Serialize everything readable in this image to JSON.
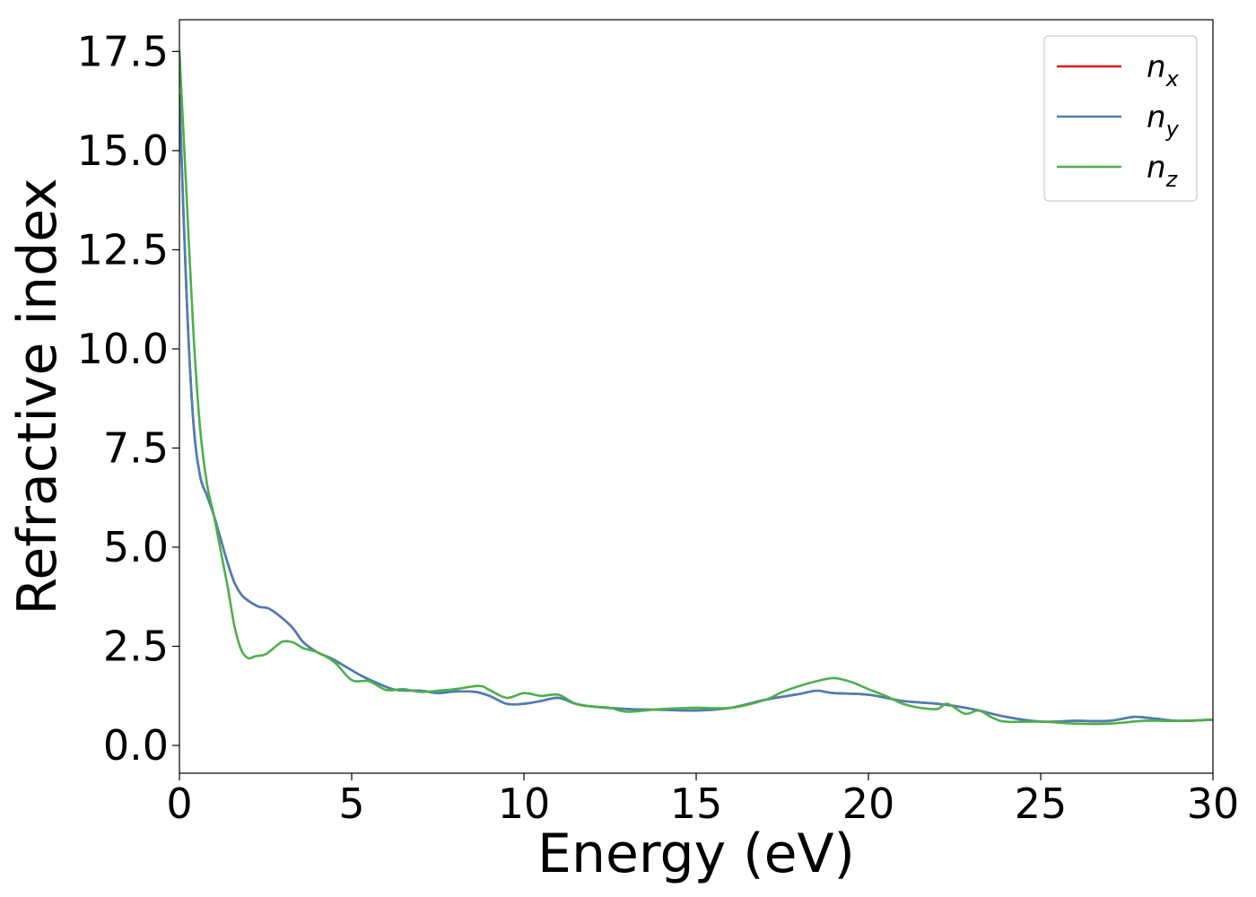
{
  "chart_data": {
    "type": "line",
    "title": "",
    "xlabel": "Energy (eV)",
    "ylabel": "Refractive index",
    "xlim": [
      0,
      30
    ],
    "ylim": [
      -0.7,
      18.3
    ],
    "xticks": [
      0,
      5,
      10,
      15,
      20,
      25,
      30
    ],
    "xtick_labels": [
      "0",
      "5",
      "10",
      "15",
      "20",
      "25",
      "30"
    ],
    "yticks": [
      0,
      2.5,
      5,
      7.5,
      10,
      12.5,
      15,
      17.5
    ],
    "ytick_labels": [
      "0.0",
      "2.5",
      "5.0",
      "7.5",
      "10.0",
      "12.5",
      "15.0",
      "17.5"
    ],
    "grid": false,
    "legend_position": "top-right",
    "series": [
      {
        "name": "n_x",
        "label_main": "n",
        "label_sub": "x",
        "color": "#e41a1c",
        "x": [
          0,
          0.2,
          0.4,
          0.6,
          0.8,
          1.0,
          1.2,
          1.4,
          1.6,
          1.8,
          2.0,
          2.3,
          2.6,
          3.0,
          3.3,
          3.6,
          4.0,
          4.4,
          4.8,
          5.3,
          5.8,
          6.3,
          7.0,
          7.5,
          8.0,
          8.6,
          9.0,
          9.5,
          10.0,
          10.5,
          11.0,
          11.5,
          12.0,
          13.0,
          14.0,
          15.0,
          16.0,
          17.0,
          18.0,
          18.5,
          19.0,
          20.0,
          21.0,
          22.0,
          23.0,
          24.0,
          25.0,
          26.0,
          27.0,
          27.7,
          28.3,
          29.0,
          30.0
        ],
        "y": [
          16.4,
          11.5,
          8.2,
          6.8,
          6.3,
          5.8,
          5.2,
          4.6,
          4.1,
          3.8,
          3.65,
          3.5,
          3.45,
          3.2,
          2.95,
          2.6,
          2.35,
          2.2,
          2.0,
          1.75,
          1.55,
          1.4,
          1.38,
          1.32,
          1.36,
          1.35,
          1.25,
          1.05,
          1.05,
          1.12,
          1.2,
          1.05,
          0.98,
          0.92,
          0.9,
          0.88,
          0.95,
          1.15,
          1.3,
          1.38,
          1.32,
          1.28,
          1.12,
          1.05,
          0.92,
          0.72,
          0.6,
          0.62,
          0.62,
          0.72,
          0.68,
          0.62,
          0.65
        ]
      },
      {
        "name": "n_y",
        "label_main": "n",
        "label_sub": "y",
        "color": "#4a7fb5",
        "x": [
          0,
          0.2,
          0.4,
          0.6,
          0.8,
          1.0,
          1.2,
          1.4,
          1.6,
          1.8,
          2.0,
          2.3,
          2.6,
          3.0,
          3.3,
          3.6,
          4.0,
          4.4,
          4.8,
          5.3,
          5.8,
          6.3,
          7.0,
          7.5,
          8.0,
          8.6,
          9.0,
          9.5,
          10.0,
          10.5,
          11.0,
          11.5,
          12.0,
          13.0,
          14.0,
          15.0,
          16.0,
          17.0,
          18.0,
          18.5,
          19.0,
          20.0,
          21.0,
          22.0,
          23.0,
          24.0,
          25.0,
          26.0,
          27.0,
          27.7,
          28.3,
          29.0,
          30.0
        ],
        "y": [
          16.4,
          11.5,
          8.2,
          6.8,
          6.3,
          5.8,
          5.2,
          4.6,
          4.1,
          3.8,
          3.65,
          3.5,
          3.45,
          3.2,
          2.95,
          2.6,
          2.35,
          2.2,
          2.0,
          1.75,
          1.55,
          1.4,
          1.38,
          1.32,
          1.36,
          1.35,
          1.25,
          1.05,
          1.05,
          1.12,
          1.2,
          1.05,
          0.98,
          0.92,
          0.9,
          0.88,
          0.95,
          1.15,
          1.3,
          1.38,
          1.32,
          1.28,
          1.12,
          1.05,
          0.92,
          0.72,
          0.6,
          0.62,
          0.62,
          0.72,
          0.68,
          0.62,
          0.65
        ]
      },
      {
        "name": "n_z",
        "label_main": "n",
        "label_sub": "z",
        "color": "#4daf4a",
        "x": [
          0,
          0.2,
          0.4,
          0.6,
          0.8,
          1.0,
          1.2,
          1.4,
          1.6,
          1.8,
          2.0,
          2.2,
          2.5,
          2.8,
          3.0,
          3.3,
          3.6,
          4.0,
          4.5,
          5.0,
          5.5,
          6.0,
          6.5,
          7.0,
          7.5,
          8.0,
          8.7,
          9.0,
          9.5,
          10.0,
          10.5,
          11.0,
          11.5,
          12.0,
          12.5,
          13.0,
          14.0,
          15.0,
          16.0,
          17.0,
          17.5,
          18.0,
          18.5,
          19.0,
          19.5,
          20.0,
          20.5,
          21.0,
          21.5,
          22.0,
          22.3,
          22.8,
          23.2,
          23.6,
          24.0,
          25.0,
          26.0,
          27.0,
          28.0,
          29.0,
          30.0
        ],
        "y": [
          17.5,
          14.0,
          10.5,
          8.0,
          6.6,
          5.8,
          4.9,
          4.0,
          3.0,
          2.4,
          2.2,
          2.25,
          2.3,
          2.5,
          2.62,
          2.6,
          2.45,
          2.35,
          2.1,
          1.65,
          1.62,
          1.4,
          1.42,
          1.35,
          1.38,
          1.42,
          1.5,
          1.4,
          1.2,
          1.32,
          1.25,
          1.28,
          1.05,
          0.98,
          0.95,
          0.85,
          0.92,
          0.95,
          0.95,
          1.15,
          1.35,
          1.5,
          1.62,
          1.7,
          1.6,
          1.42,
          1.25,
          1.05,
          0.95,
          0.92,
          1.05,
          0.8,
          0.88,
          0.7,
          0.6,
          0.6,
          0.55,
          0.55,
          0.62,
          0.62,
          0.65
        ]
      }
    ]
  }
}
